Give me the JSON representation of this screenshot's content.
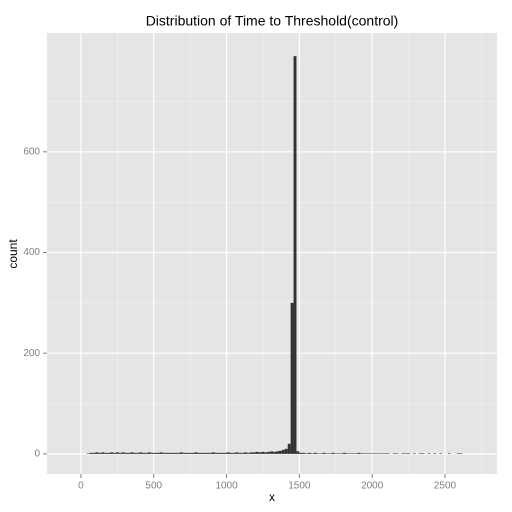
{
  "chart_data": {
    "type": "histogram",
    "title": "Distribution of Time to Threshold(control)",
    "x_label": "x",
    "y_label": "count",
    "color": "#333333",
    "bins": [
      40,
      60,
      80,
      100,
      120,
      140,
      160,
      180,
      200,
      220,
      240,
      260,
      280,
      300,
      320,
      340,
      360,
      380,
      400,
      420,
      440,
      460,
      480,
      500,
      520,
      540,
      560,
      580,
      600,
      620,
      640,
      660,
      680,
      700,
      720,
      740,
      760,
      780,
      800,
      820,
      840,
      860,
      880,
      900,
      920,
      940,
      960,
      980,
      1000,
      1020,
      1040,
      1060,
      1080,
      1100,
      1120,
      1140,
      1160,
      1180,
      1200,
      1220,
      1240,
      1260,
      1280,
      1300,
      1320,
      1340,
      1360,
      1380,
      1400,
      1420,
      1440,
      1460,
      1480,
      1500,
      1520,
      1540,
      1560,
      1580,
      1600,
      1620,
      1640,
      1660,
      1680,
      1700,
      1720,
      1740,
      1760,
      1780,
      1800,
      1820,
      1840,
      1860,
      1880,
      1900,
      1920,
      1940,
      1960,
      1980,
      2000,
      2020,
      2040,
      2060,
      2080,
      2100,
      2120,
      2140,
      2160,
      2180,
      2200,
      2220,
      2240,
      2260,
      2280,
      2300,
      2320,
      2340,
      2360,
      2380,
      2400,
      2420,
      2440,
      2460,
      2480,
      2500,
      2520,
      2540,
      2560,
      2580,
      2600,
      2620
    ],
    "values": [
      1,
      2,
      2,
      3,
      2,
      3,
      2,
      2,
      3,
      2,
      3,
      2,
      3,
      2,
      2,
      3,
      2,
      2,
      3,
      2,
      2,
      3,
      2,
      2,
      2,
      3,
      2,
      2,
      2,
      2,
      2,
      2,
      3,
      2,
      2,
      2,
      2,
      3,
      2,
      2,
      2,
      2,
      2,
      3,
      2,
      2,
      2,
      2,
      3,
      2,
      2,
      3,
      2,
      2,
      3,
      2,
      3,
      3,
      4,
      3,
      4,
      3,
      4,
      5,
      4,
      5,
      6,
      8,
      10,
      20,
      300,
      790,
      5,
      2,
      2,
      1,
      2,
      1,
      2,
      1,
      1,
      2,
      1,
      1,
      2,
      1,
      1,
      1,
      2,
      1,
      1,
      1,
      1,
      2,
      1,
      1,
      1,
      1,
      1,
      1,
      1,
      1,
      1,
      1,
      0,
      1,
      1,
      0,
      1,
      1,
      1,
      0,
      1,
      0,
      1,
      1,
      0,
      1,
      0,
      1,
      0,
      1,
      0,
      0,
      1,
      0,
      0,
      1,
      1
    ],
    "xlim": [
      -233,
      2857
    ],
    "ylim": [
      -40,
      836
    ],
    "xticks": [
      0,
      500,
      1000,
      1500,
      2000,
      2500
    ],
    "yticks": [
      0,
      200,
      400,
      600
    ],
    "xminorticks": [
      250,
      750,
      1250,
      1750,
      2250,
      2750
    ],
    "yminorticks": [
      100,
      300,
      500,
      700
    ],
    "grid": true
  }
}
